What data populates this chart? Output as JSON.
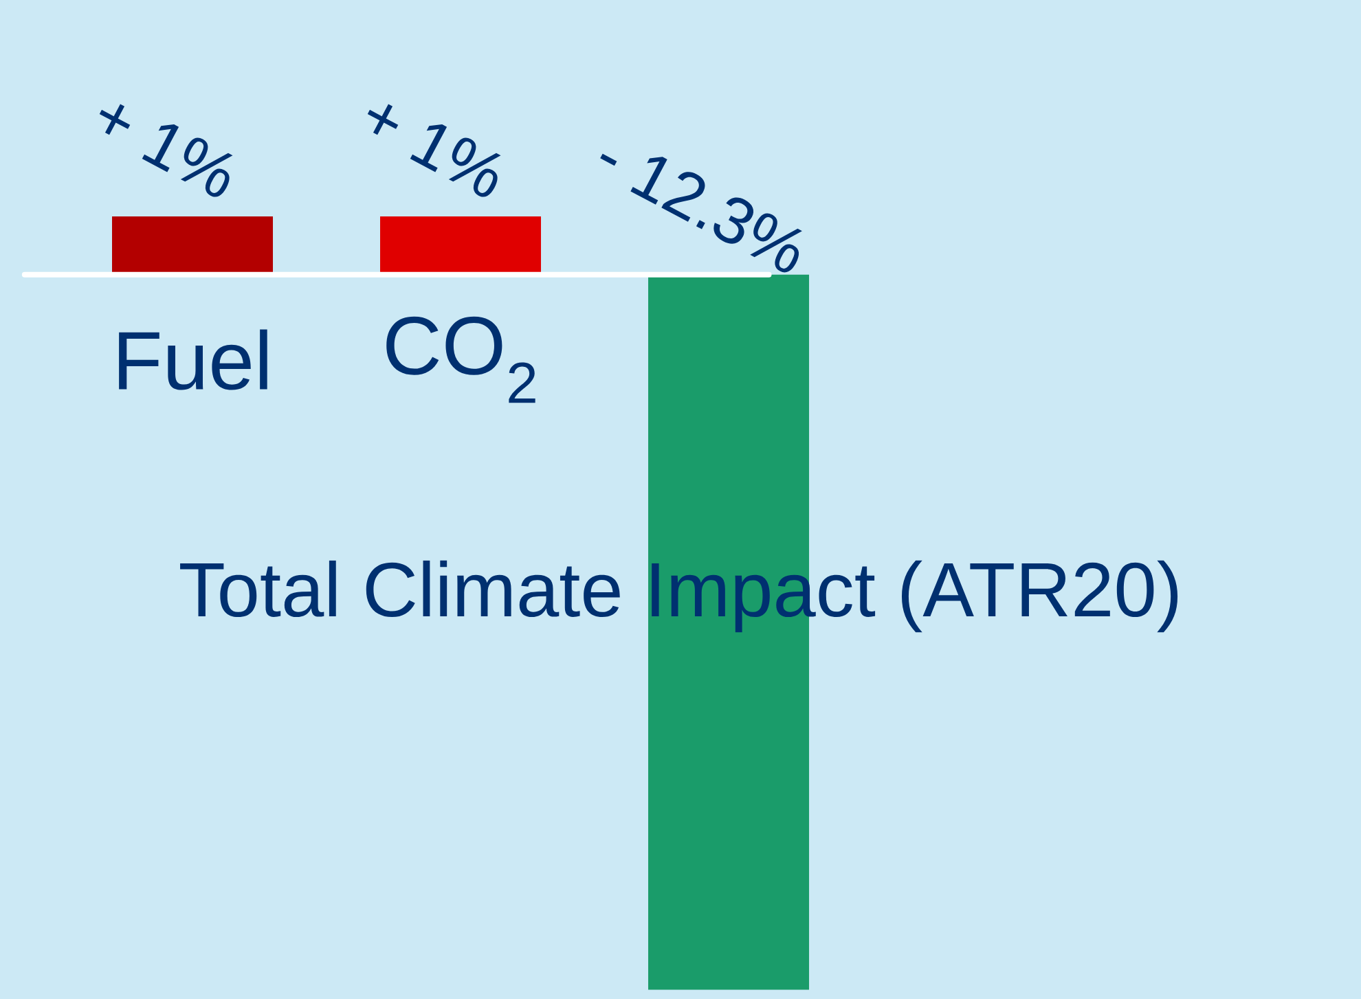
{
  "chart_data": {
    "type": "bar",
    "categories": [
      "Fuel",
      "CO$_{2}$",
      "Total Climate Impact (ATR20)"
    ],
    "values": [
      1,
      1,
      -12.3
    ],
    "colors": [
      "#b30000",
      "#e00000",
      "#1a9c6a"
    ],
    "value_labels": [
      "+ 1%",
      "+ 1%",
      "- 12.3%"
    ]
  }
}
